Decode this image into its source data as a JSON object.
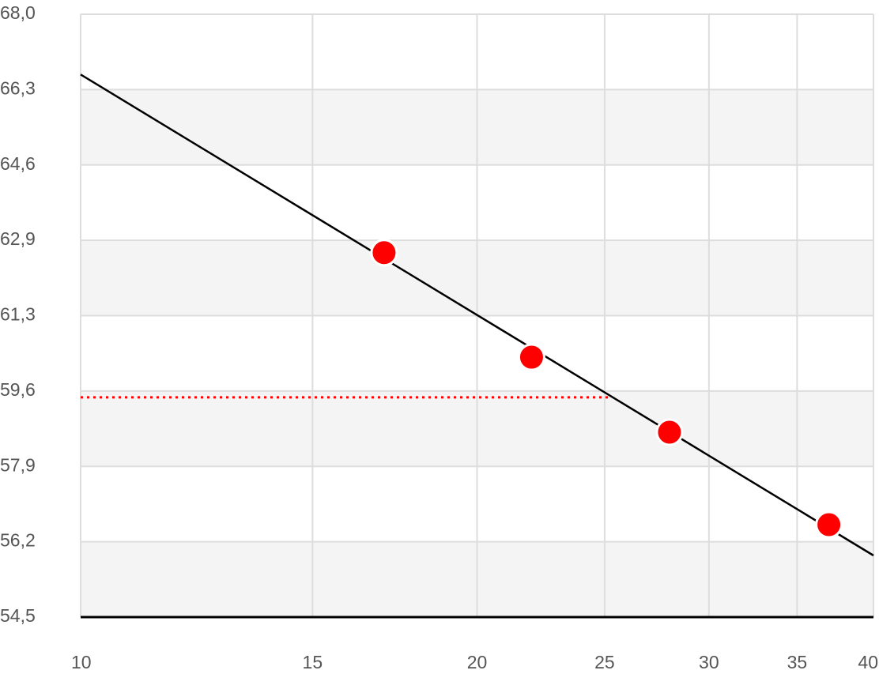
{
  "chart_data": {
    "type": "scatter",
    "xscale": "log",
    "xlim": [
      10,
      40
    ],
    "xticks": [
      10,
      15,
      20,
      25,
      30,
      35,
      40
    ],
    "ylim": [
      54.5,
      68
    ],
    "yticks": [
      {
        "value": 54.5,
        "label": "54,5"
      },
      {
        "value": 56.1875,
        "label": "56,2"
      },
      {
        "value": 57.875,
        "label": "57,9"
      },
      {
        "value": 59.5625,
        "label": "59,6"
      },
      {
        "value": 61.25,
        "label": "61,3"
      },
      {
        "value": 62.9375,
        "label": "62,9"
      },
      {
        "value": 64.625,
        "label": "64,6"
      },
      {
        "value": 66.3125,
        "label": "66,3"
      },
      {
        "value": 68,
        "label": "68,0"
      }
    ],
    "grid": true,
    "band_color": "#f4f4f4",
    "series": [
      {
        "style": "line",
        "color": "#000000",
        "x": [
          10,
          40
        ],
        "values": [
          66.65,
          55.88
        ]
      },
      {
        "style": "dotted",
        "color": "#ff0000",
        "x": [
          10,
          25.3
        ],
        "values": [
          59.42,
          59.42
        ]
      },
      {
        "style": "points",
        "color": "#ff0000",
        "x": [
          17,
          22,
          28,
          37
        ],
        "values": [
          62.66,
          60.32,
          58.64,
          56.57
        ]
      }
    ]
  }
}
